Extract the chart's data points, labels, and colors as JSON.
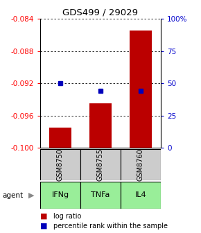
{
  "title": "GDS499 / 29029",
  "samples": [
    "GSM8750",
    "GSM8755",
    "GSM8760"
  ],
  "agents": [
    "IFNg",
    "TNFa",
    "IL4"
  ],
  "log_ratios": [
    -0.0975,
    -0.0945,
    -0.0855
  ],
  "percentile_ranks": [
    50,
    44,
    44
  ],
  "ylim_left": [
    -0.1,
    -0.084
  ],
  "yticks_left": [
    -0.1,
    -0.096,
    -0.092,
    -0.088,
    -0.084
  ],
  "yticks_right": [
    0,
    25,
    50,
    75,
    100
  ],
  "bar_color": "#bb0000",
  "dot_color": "#0000bb",
  "agent_bg_color": "#99ee99",
  "sample_bg_color": "#cccccc",
  "legend_bar": "log ratio",
  "legend_dot": "percentile rank within the sample"
}
